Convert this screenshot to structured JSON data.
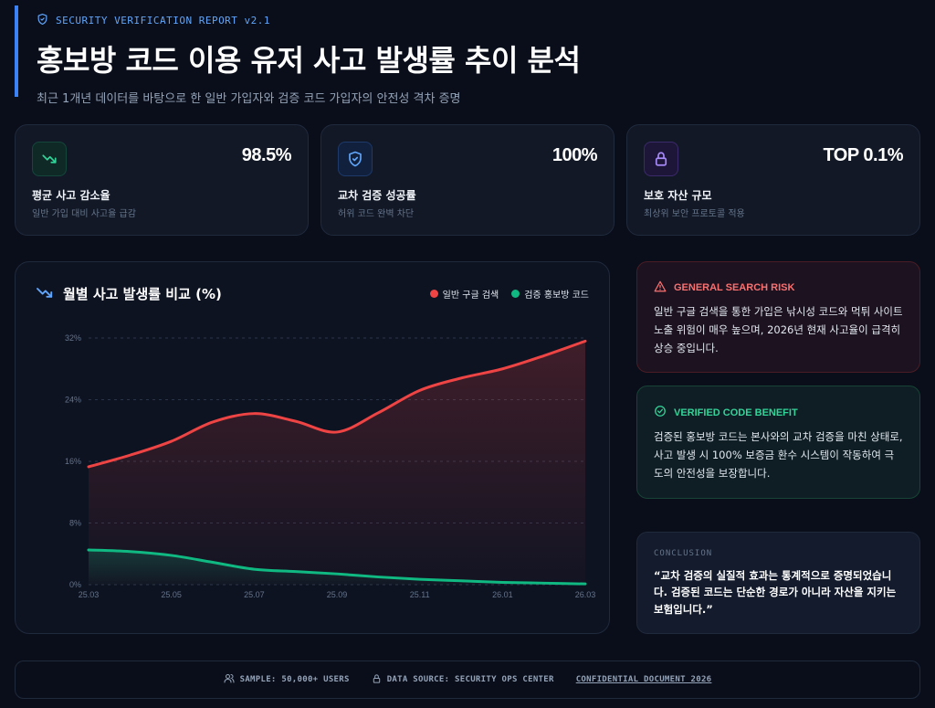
{
  "header": {
    "eyebrow": "SECURITY VERIFICATION REPORT v2.1",
    "title": "홍보방 코드 이용 유저 사고 발생률 추이 분석",
    "subtitle": "최근 1개년 데이터를 바탕으로 한 일반 가입자와 검증 코드 가입자의 안전성 격차 증명"
  },
  "stats": [
    {
      "icon": "trending-down-icon",
      "value": "98.5%",
      "label": "평균 사고 감소율",
      "sub": "일반 가입 대비 사고율 급감",
      "color": "#34d399"
    },
    {
      "icon": "shield-check-icon",
      "value": "100%",
      "label": "교차 검증 성공률",
      "sub": "허위 코드 완벽 차단",
      "color": "#60a5fa"
    },
    {
      "icon": "lock-icon",
      "value": "TOP 0.1%",
      "label": "보호 자산 규모",
      "sub": "최상위 보안 프로토콜 적용",
      "color": "#a78bfa"
    }
  ],
  "chart_title": "월별 사고 발생률 비교 (%)",
  "chart_data": {
    "type": "area",
    "title": "월별 사고 발생률 비교 (%)",
    "x": [
      "25.03",
      "25.04",
      "25.05",
      "25.06",
      "25.07",
      "25.08",
      "25.09",
      "25.10",
      "25.11",
      "25.12",
      "26.01",
      "26.02",
      "26.03"
    ],
    "xticks": [
      "25.03",
      "25.05",
      "25.07",
      "25.09",
      "25.11",
      "26.01",
      "26.03"
    ],
    "yticks": [
      "0%",
      "8%",
      "16%",
      "24%",
      "32%"
    ],
    "ylim": [
      0,
      32
    ],
    "series": [
      {
        "name": "일반 구글 검색",
        "color": "#ef4444",
        "values": [
          15.3,
          16.8,
          18.6,
          21.1,
          22.2,
          21.2,
          19.8,
          22.3,
          25.2,
          26.8,
          28.0,
          29.7,
          31.6
        ]
      },
      {
        "name": "검증 홍보방 코드",
        "color": "#10b981",
        "values": [
          4.5,
          4.3,
          3.8,
          2.9,
          2.0,
          1.7,
          1.4,
          1.0,
          0.7,
          0.5,
          0.3,
          0.2,
          0.1
        ]
      }
    ],
    "grid": true,
    "legend": "top-right"
  },
  "risk": {
    "title": "GENERAL SEARCH RISK",
    "body": "일반 구글 검색을 통한 가입은 낚시성 코드와 먹튀 사이트 노출 위험이 매우 높으며, 2026년 현재 사고율이 급격히 상승 중입니다.",
    "color": "#f87171"
  },
  "benefit": {
    "title": "VERIFIED CODE BENEFIT",
    "body": "검증된 홍보방 코드는 본사와의 교차 검증을 마친 상태로, 사고 발생 시 100% 보증금 환수 시스템이 작동하여 극도의 안전성을 보장합니다.",
    "color": "#34d399"
  },
  "conclusion": {
    "label": "CONCLUSION",
    "quote": "“교차 검증의 실질적 효과는 통계적으로 증명되었습니다. 검증된 코드는 단순한 경로가 아니라 자산을 지키는 보험입니다.”"
  },
  "footer": {
    "sample": "SAMPLE: 50,000+ USERS",
    "source": "DATA SOURCE: SECURITY OPS CENTER",
    "confidential": "CONFIDENTIAL DOCUMENT 2026"
  }
}
